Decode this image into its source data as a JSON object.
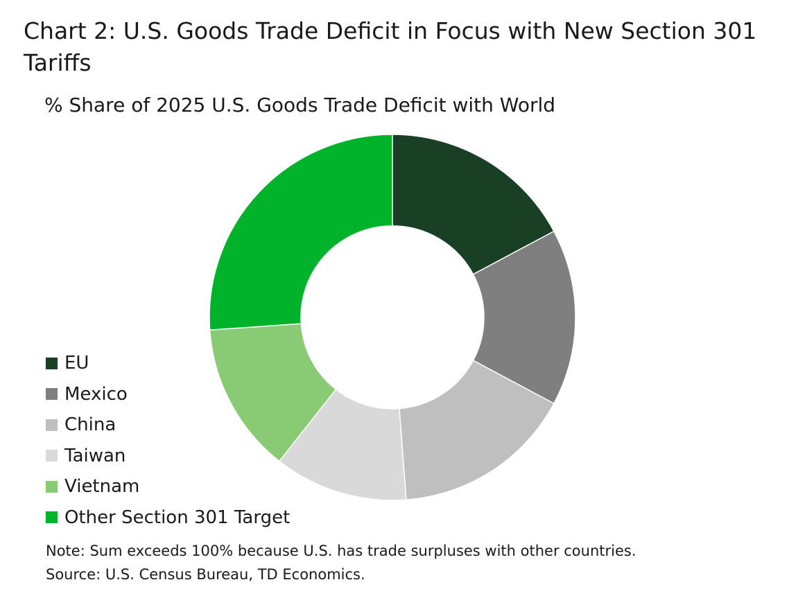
{
  "chart_data": {
    "type": "pie",
    "variant": "donut",
    "title": "Chart 2: U.S. Goods Trade Deficit in Focus with New Section 301 Tariffs",
    "subtitle": "% Share of 2025 U.S. Goods Trade Deficit with World",
    "series": [
      {
        "name": "EU",
        "value": 17.2,
        "color": "#193f25"
      },
      {
        "name": "Mexico",
        "value": 15.6,
        "color": "#7f7f7f"
      },
      {
        "name": "China",
        "value": 16.0,
        "color": "#bfbfbf"
      },
      {
        "name": "Taiwan",
        "value": 11.8,
        "color": "#d9d9d9"
      },
      {
        "name": "Vietnam",
        "value": 13.3,
        "color": "#88cb74"
      },
      {
        "name": "Other Section 301 Target",
        "value": 26.1,
        "color": "#00b32a"
      }
    ],
    "legend_position": "left",
    "start_angle": "top, clockwise"
  },
  "notes": {
    "note": "Note: Sum exceeds 100% because U.S. has trade surpluses with other countries.",
    "source": "Source: U.S. Census Bureau, TD Economics."
  }
}
